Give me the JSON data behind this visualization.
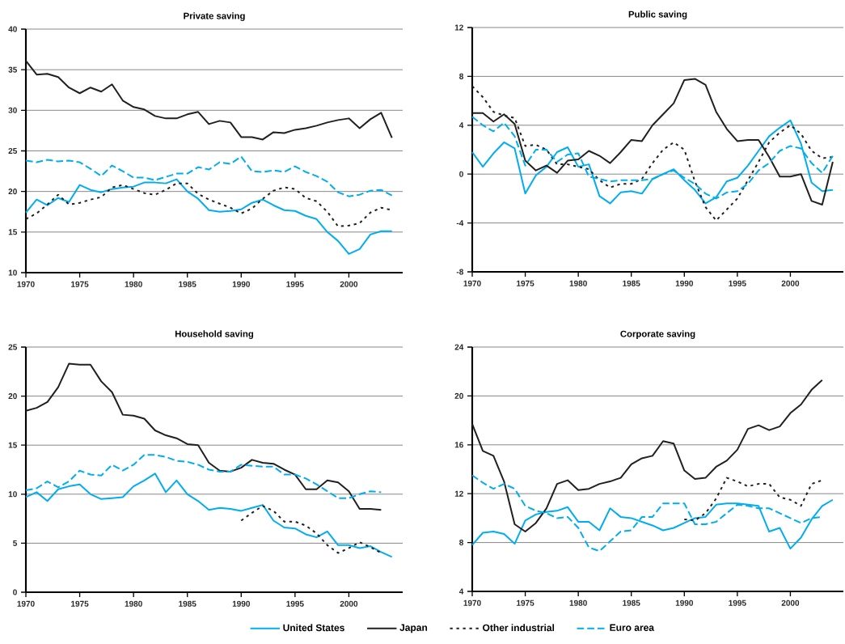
{
  "chart_data": [
    {
      "type": "line",
      "title": "Private saving",
      "x": [
        1970,
        1971,
        1972,
        1973,
        1974,
        1975,
        1976,
        1977,
        1978,
        1979,
        1980,
        1981,
        1982,
        1983,
        1984,
        1985,
        1986,
        1987,
        1988,
        1989,
        1990,
        1991,
        1992,
        1993,
        1994,
        1995,
        1996,
        1997,
        1998,
        1999,
        2000,
        2001,
        2002,
        2003,
        2004
      ],
      "xlim": [
        1970,
        2005
      ],
      "xticks": [
        1970,
        1975,
        1980,
        1985,
        1990,
        1995,
        2000
      ],
      "ylim": [
        10,
        40
      ],
      "yticks": [
        10,
        15,
        20,
        25,
        30,
        35,
        40
      ],
      "grid": "y",
      "series": [
        {
          "color": "#00aeef",
          "line_style": "solid",
          "values": [
            17.4,
            19.0,
            18.3,
            19.2,
            18.7,
            20.8,
            20.2,
            19.9,
            20.3,
            20.5,
            20.6,
            21.1,
            21.1,
            21.0,
            21.5,
            20.0,
            19.1,
            17.7,
            17.5,
            17.6,
            17.8,
            18.6,
            19.0,
            18.3,
            17.7,
            17.6,
            17.0,
            16.6,
            15.0,
            13.9,
            12.3,
            12.9,
            14.7,
            15.1,
            15.1
          ]
        },
        {
          "color": "#231f20",
          "line_style": "solid",
          "values": [
            36.1,
            34.4,
            34.5,
            34.1,
            32.8,
            32.1,
            32.8,
            32.3,
            33.2,
            31.2,
            30.4,
            30.1,
            29.3,
            29.0,
            29.0,
            29.5,
            29.8,
            28.3,
            28.7,
            28.5,
            26.7,
            26.7,
            26.4,
            27.3,
            27.2,
            27.6,
            27.8,
            28.1,
            28.5,
            28.8,
            29.0,
            27.8,
            28.9,
            29.7,
            26.6
          ]
        },
        {
          "color": "#231f20",
          "line_style": "dotted",
          "values": [
            16.6,
            17.3,
            18.4,
            19.6,
            18.4,
            18.6,
            19.0,
            19.3,
            20.5,
            20.8,
            20.3,
            19.8,
            19.6,
            20.2,
            21.0,
            21.0,
            19.7,
            19.0,
            18.5,
            18.0,
            17.3,
            17.9,
            19.1,
            20.1,
            20.5,
            20.3,
            19.2,
            18.8,
            17.5,
            15.7,
            15.8,
            16.1,
            17.4,
            18.0,
            17.7
          ]
        },
        {
          "color": "#00aeef",
          "line_style": "dashed",
          "values": [
            23.8,
            23.6,
            23.9,
            23.7,
            23.8,
            23.6,
            22.8,
            21.9,
            23.2,
            22.5,
            21.7,
            21.7,
            21.4,
            21.8,
            22.2,
            22.2,
            23.0,
            22.7,
            23.6,
            23.4,
            24.3,
            22.5,
            22.4,
            22.6,
            22.4,
            23.1,
            22.4,
            21.9,
            21.2,
            19.9,
            19.4,
            19.6,
            20.1,
            20.2,
            19.5
          ]
        }
      ]
    },
    {
      "type": "line",
      "title": "Public saving",
      "x": [
        1970,
        1971,
        1972,
        1973,
        1974,
        1975,
        1976,
        1977,
        1978,
        1979,
        1980,
        1981,
        1982,
        1983,
        1984,
        1985,
        1986,
        1987,
        1988,
        1989,
        1990,
        1991,
        1992,
        1993,
        1994,
        1995,
        1996,
        1997,
        1998,
        1999,
        2000,
        2001,
        2002,
        2003,
        2004
      ],
      "xlim": [
        1970,
        2005
      ],
      "xticks": [
        1970,
        1975,
        1980,
        1985,
        1990,
        1995,
        2000
      ],
      "ylim": [
        -8,
        12
      ],
      "yticks": [
        -8,
        -4,
        0,
        4,
        8,
        12
      ],
      "grid": "y",
      "series": [
        {
          "color": "#00aeef",
          "line_style": "solid",
          "values": [
            1.8,
            0.6,
            1.7,
            2.6,
            2.1,
            -1.6,
            -0.1,
            0.6,
            1.8,
            2.2,
            0.6,
            0.8,
            -1.8,
            -2.4,
            -1.5,
            -1.4,
            -1.6,
            -0.4,
            0.0,
            0.4,
            -0.5,
            -1.3,
            -2.4,
            -1.9,
            -0.6,
            -0.3,
            0.7,
            1.9,
            3.1,
            3.8,
            4.4,
            2.5,
            -0.7,
            -1.4,
            -1.3
          ]
        },
        {
          "color": "#231f20",
          "line_style": "solid",
          "values": [
            5.0,
            5.0,
            4.3,
            4.9,
            4.1,
            1.1,
            0.3,
            0.7,
            0.1,
            1.1,
            1.2,
            1.9,
            1.5,
            0.9,
            1.8,
            2.8,
            2.7,
            4.0,
            4.9,
            5.8,
            7.7,
            7.8,
            7.3,
            5.1,
            3.7,
            2.7,
            2.8,
            2.8,
            1.4,
            -0.2,
            -0.2,
            0.0,
            -2.2,
            -2.5,
            1.0
          ]
        },
        {
          "color": "#231f20",
          "line_style": "dotted",
          "values": [
            7.2,
            6.3,
            5.1,
            4.8,
            4.6,
            2.3,
            2.4,
            2.0,
            0.8,
            0.8,
            0.6,
            0.4,
            -0.5,
            -1.1,
            -0.8,
            -0.8,
            -0.4,
            0.9,
            2.0,
            2.6,
            2.0,
            -0.6,
            -2.7,
            -3.8,
            -2.9,
            -2.0,
            -0.5,
            1.0,
            2.6,
            3.4,
            4.0,
            3.3,
            1.9,
            1.3,
            1.4
          ]
        },
        {
          "color": "#00aeef",
          "line_style": "dashed",
          "values": [
            4.7,
            4.0,
            3.5,
            4.2,
            3.1,
            0.7,
            2.0,
            2.0,
            1.0,
            1.6,
            1.7,
            -0.2,
            -0.4,
            -0.6,
            -0.5,
            -0.5,
            -0.5,
            -0.4,
            0.0,
            0.3,
            -0.3,
            -0.8,
            -1.6,
            -2.0,
            -1.5,
            -1.4,
            -0.8,
            0.3,
            0.9,
            1.9,
            2.3,
            2.1,
            0.9,
            0.1,
            1.5
          ]
        }
      ]
    },
    {
      "type": "line",
      "title": "Household saving",
      "x": [
        1970,
        1971,
        1972,
        1973,
        1974,
        1975,
        1976,
        1977,
        1978,
        1979,
        1980,
        1981,
        1982,
        1983,
        1984,
        1985,
        1986,
        1987,
        1988,
        1989,
        1990,
        1991,
        1992,
        1993,
        1994,
        1995,
        1996,
        1997,
        1998,
        1999,
        2000,
        2001,
        2002,
        2003,
        2004
      ],
      "xlim": [
        1970,
        2005
      ],
      "xticks": [
        1970,
        1975,
        1980,
        1985,
        1990,
        1995,
        2000
      ],
      "ylim": [
        0,
        25
      ],
      "yticks": [
        0,
        5,
        10,
        15,
        20,
        25
      ],
      "grid": "y",
      "series": [
        {
          "color": "#00aeef",
          "line_style": "solid",
          "values": [
            9.7,
            10.2,
            9.3,
            10.5,
            10.8,
            11.0,
            10.0,
            9.5,
            9.6,
            9.7,
            10.8,
            11.4,
            12.1,
            10.2,
            11.4,
            10.0,
            9.3,
            8.4,
            8.6,
            8.5,
            8.3,
            8.6,
            8.9,
            7.3,
            6.6,
            6.5,
            5.9,
            5.6,
            6.2,
            4.8,
            4.8,
            4.5,
            4.7,
            4.1,
            3.6
          ]
        },
        {
          "color": "#231f20",
          "line_style": "solid",
          "values": [
            18.5,
            18.8,
            19.4,
            20.9,
            23.3,
            23.2,
            23.2,
            21.5,
            20.4,
            18.1,
            18.0,
            17.7,
            16.5,
            16.0,
            15.7,
            15.1,
            15.0,
            13.2,
            12.4,
            12.3,
            12.7,
            13.5,
            13.2,
            13.1,
            12.5,
            12.0,
            10.5,
            10.5,
            11.4,
            11.2,
            10.3,
            8.5,
            8.5,
            8.4,
            null
          ]
        },
        {
          "color": "#231f20",
          "line_style": "dotted",
          "values": [
            null,
            null,
            null,
            null,
            null,
            null,
            null,
            null,
            null,
            null,
            null,
            null,
            null,
            null,
            null,
            null,
            null,
            null,
            null,
            null,
            7.3,
            8.1,
            8.8,
            8.3,
            7.2,
            7.2,
            6.8,
            6.0,
            4.8,
            4.0,
            4.5,
            5.1,
            4.6,
            4.0,
            null
          ]
        },
        {
          "color": "#00aeef",
          "line_style": "dashed",
          "values": [
            10.4,
            10.6,
            11.3,
            10.7,
            11.3,
            12.4,
            12.0,
            11.9,
            13.0,
            12.4,
            13.0,
            14.0,
            14.0,
            13.8,
            13.4,
            13.3,
            13.0,
            12.5,
            12.3,
            12.3,
            13.0,
            12.9,
            12.8,
            12.8,
            12.0,
            12.0,
            11.6,
            11.0,
            10.3,
            9.6,
            9.6,
            10.0,
            10.3,
            10.2,
            null
          ]
        }
      ]
    },
    {
      "type": "line",
      "title": "Corporate saving",
      "x": [
        1970,
        1971,
        1972,
        1973,
        1974,
        1975,
        1976,
        1977,
        1978,
        1979,
        1980,
        1981,
        1982,
        1983,
        1984,
        1985,
        1986,
        1987,
        1988,
        1989,
        1990,
        1991,
        1992,
        1993,
        1994,
        1995,
        1996,
        1997,
        1998,
        1999,
        2000,
        2001,
        2002,
        2003,
        2004
      ],
      "xlim": [
        1970,
        2005
      ],
      "xticks": [
        1970,
        1975,
        1980,
        1985,
        1990,
        1995,
        2000
      ],
      "ylim": [
        4,
        24
      ],
      "yticks": [
        4,
        8,
        12,
        16,
        20,
        24
      ],
      "grid": "y",
      "legend": "bottom",
      "series": [
        {
          "name": "United States",
          "color": "#00aeef",
          "line_style": "solid",
          "values": [
            7.8,
            8.8,
            8.9,
            8.7,
            7.9,
            9.8,
            10.3,
            10.5,
            10.6,
            10.9,
            9.7,
            9.7,
            9.0,
            10.8,
            10.1,
            10.0,
            9.7,
            9.4,
            9.0,
            9.2,
            9.6,
            10.0,
            10.1,
            11.1,
            11.2,
            11.2,
            11.1,
            11.0,
            8.9,
            9.2,
            7.5,
            8.4,
            9.9,
            11.0,
            11.5
          ]
        },
        {
          "name": "Japan",
          "color": "#231f20",
          "line_style": "solid",
          "values": [
            17.7,
            15.5,
            15.1,
            13.0,
            9.5,
            8.9,
            9.6,
            10.8,
            12.8,
            13.1,
            12.3,
            12.4,
            12.8,
            13.0,
            13.3,
            14.4,
            14.9,
            15.1,
            16.3,
            16.1,
            13.9,
            13.2,
            13.3,
            14.2,
            14.7,
            15.6,
            17.3,
            17.6,
            17.2,
            17.5,
            18.6,
            19.3,
            20.5,
            21.3,
            null
          ]
        },
        {
          "name": "Other industrial",
          "color": "#231f20",
          "line_style": "dotted",
          "values": [
            null,
            null,
            null,
            null,
            null,
            null,
            null,
            null,
            null,
            null,
            null,
            null,
            null,
            null,
            null,
            null,
            null,
            null,
            null,
            null,
            9.9,
            9.8,
            10.4,
            11.6,
            13.3,
            13.0,
            12.6,
            12.8,
            12.8,
            11.7,
            11.5,
            11.0,
            12.8,
            13.1,
            null
          ]
        },
        {
          "name": "Euro area",
          "color": "#00aeef",
          "line_style": "dashed",
          "values": [
            13.5,
            12.9,
            12.4,
            12.8,
            12.4,
            11.0,
            10.6,
            10.4,
            10.0,
            10.1,
            9.2,
            7.6,
            7.3,
            8.1,
            8.9,
            9.0,
            10.1,
            10.1,
            11.2,
            11.2,
            11.2,
            9.5,
            9.5,
            9.7,
            10.4,
            11.1,
            11.0,
            10.8,
            10.8,
            10.4,
            10.0,
            9.6,
            10.0,
            10.1,
            null
          ]
        }
      ]
    }
  ]
}
